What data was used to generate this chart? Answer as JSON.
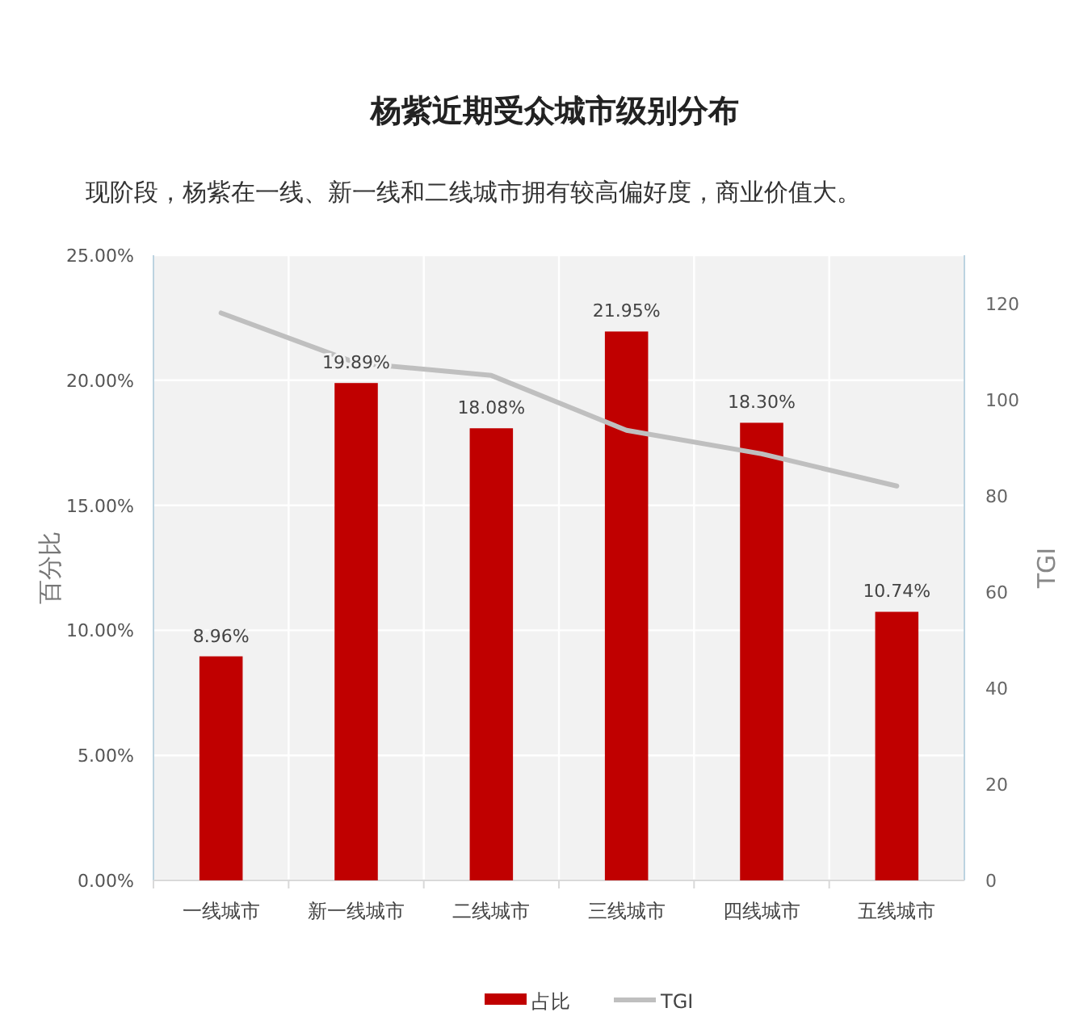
{
  "chart_data": {
    "type": "bar",
    "title": "杨紫近期受众城市级别分布",
    "subtitle": "现阶段，杨紫在一线、新一线和二线城市拥有较高偏好度，商业价值大。",
    "categories": [
      "一线城市",
      "新一线城市",
      "二线城市",
      "三线城市",
      "四线城市",
      "五线城市"
    ],
    "series": [
      {
        "name": "占比",
        "type": "bar",
        "color": "#c00000",
        "values": [
          8.96,
          19.89,
          18.08,
          21.95,
          18.3,
          10.74
        ],
        "value_labels": [
          "8.96%",
          "19.89%",
          "18.08%",
          "21.95%",
          "18.30%",
          "10.74%"
        ]
      },
      {
        "name": "TGI",
        "type": "line",
        "axis": "y2",
        "color": "#bfbfbf",
        "values": [
          118,
          107.6,
          105,
          93.6,
          88.7,
          82
        ]
      }
    ],
    "ylabel": "百分比",
    "y2label": "TGI",
    "ylim": [
      0,
      25
    ],
    "yticks": [
      {
        "value": 0,
        "label": "0.00%"
      },
      {
        "value": 5,
        "label": "5.00%"
      },
      {
        "value": 10,
        "label": "10.00%"
      },
      {
        "value": 15,
        "label": "15.00%"
      },
      {
        "value": 20,
        "label": "20.00%"
      },
      {
        "value": 25,
        "label": "25.00%"
      }
    ],
    "y2lim": [
      0,
      130
    ],
    "y2ticks": [
      0,
      20,
      40,
      60,
      80,
      100,
      120
    ],
    "grid": true,
    "legend": "bottom"
  }
}
